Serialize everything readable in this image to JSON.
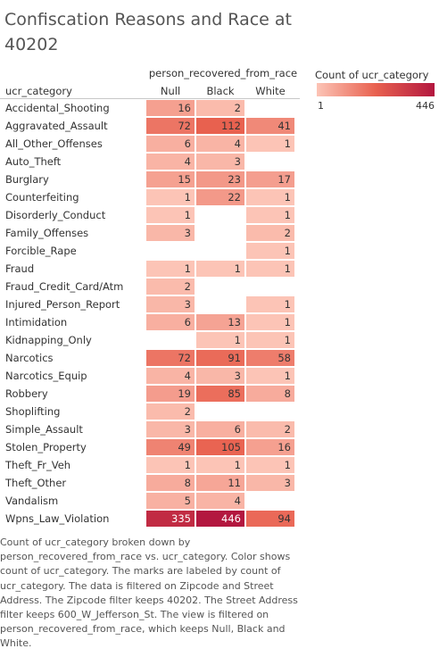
{
  "title": "Confiscation Reasons and Race at 40202",
  "caption": "Count of ucr_category broken down by person_recovered_from_race vs. ucr_category.  Color shows count of ucr_category.  The marks are labeled by count of ucr_category. The data is filtered on Zipcode and Street Address. The Zipcode filter keeps 40202. The Street Address filter keeps 600_W_Jefferson_St. The view is filtered on person_recovered_from_race, which keeps Null, Black and White.",
  "legend": {
    "title": "Count of ucr_category",
    "min_label": "1",
    "max_label": "446",
    "color_low": "#fcc4b6",
    "color_high": "#b3173f"
  },
  "chart_data": {
    "type": "heatmap",
    "column_header": "person_recovered_from_race",
    "row_header": "ucr_category",
    "columns": [
      "Null",
      "Black",
      "White"
    ],
    "rows": [
      "Accidental_Shooting",
      "Aggravated_Assault",
      "All_Other_Offenses",
      "Auto_Theft",
      "Burglary",
      "Counterfeiting",
      "Disorderly_Conduct",
      "Family_Offenses",
      "Forcible_Rape",
      "Fraud",
      "Fraud_Credit_Card/Atm",
      "Injured_Person_Report",
      "Intimidation",
      "Kidnapping_Only",
      "Narcotics",
      "Narcotics_Equip",
      "Robbery",
      "Shoplifting",
      "Simple_Assault",
      "Stolen_Property",
      "Theft_Fr_Veh",
      "Theft_Other",
      "Vandalism",
      "Wpns_Law_Violation"
    ],
    "values": [
      [
        16,
        2,
        null
      ],
      [
        72,
        112,
        41
      ],
      [
        6,
        4,
        1
      ],
      [
        4,
        3,
        null
      ],
      [
        15,
        23,
        17
      ],
      [
        1,
        22,
        1
      ],
      [
        1,
        null,
        1
      ],
      [
        3,
        null,
        2
      ],
      [
        null,
        null,
        1
      ],
      [
        1,
        1,
        1
      ],
      [
        2,
        null,
        null
      ],
      [
        3,
        null,
        1
      ],
      [
        6,
        13,
        1
      ],
      [
        null,
        1,
        1
      ],
      [
        72,
        91,
        58
      ],
      [
        4,
        3,
        1
      ],
      [
        19,
        85,
        8
      ],
      [
        2,
        null,
        null
      ],
      [
        3,
        6,
        2
      ],
      [
        49,
        105,
        16
      ],
      [
        1,
        1,
        1
      ],
      [
        8,
        11,
        3
      ],
      [
        5,
        4,
        null
      ],
      [
        335,
        446,
        94
      ]
    ],
    "color_range": [
      1,
      446
    ]
  }
}
